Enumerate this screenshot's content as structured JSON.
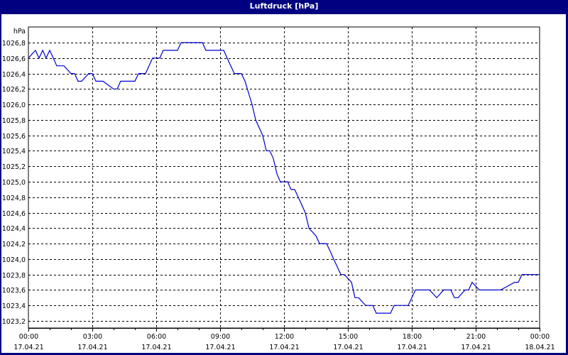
{
  "window": {
    "title": "Luftdruck [hPa]"
  },
  "colors": {
    "titlebar": "#000080",
    "line": "#0000cc",
    "grid": "#000000",
    "background": "#ffffff"
  },
  "chart_data": {
    "type": "line",
    "title": "Luftdruck [hPa]",
    "xlabel": "",
    "ylabel": "hPa",
    "ylim": [
      1023.2,
      1026.8
    ],
    "yticks": [
      "1026,8",
      "1026,6",
      "1026,4",
      "1026,2",
      "1026,0",
      "1025,8",
      "1025,6",
      "1025,4",
      "1025,2",
      "1025,0",
      "1024,8",
      "1024,6",
      "1024,4",
      "1024,2",
      "1024,0",
      "1023,8",
      "1023,6",
      "1023,4",
      "1023,2"
    ],
    "xticks": [
      {
        "time": "00:00",
        "date": "17.04.21"
      },
      {
        "time": "03:00",
        "date": "17.04.21"
      },
      {
        "time": "06:00",
        "date": "17.04.21"
      },
      {
        "time": "09:00",
        "date": "17.04.21"
      },
      {
        "time": "12:00",
        "date": "17.04.21"
      },
      {
        "time": "15:00",
        "date": "17.04.21"
      },
      {
        "time": "18:00",
        "date": "17.04.21"
      },
      {
        "time": "21:00",
        "date": "17.04.21"
      },
      {
        "time": "00:00",
        "date": "18.04.21"
      }
    ],
    "grid": true,
    "legend": "none",
    "series": [
      {
        "name": "Luftdruck",
        "x_hours": [
          0,
          0.33,
          0.5,
          0.67,
          0.83,
          1.0,
          1.17,
          1.33,
          1.67,
          2.0,
          2.17,
          2.33,
          2.5,
          2.83,
          3.0,
          3.17,
          3.5,
          4.0,
          4.17,
          4.33,
          4.5,
          5.0,
          5.17,
          5.5,
          5.83,
          6.0,
          6.17,
          6.33,
          7.0,
          7.17,
          8.17,
          8.33,
          9.17,
          9.33,
          9.5,
          9.67,
          10.0,
          10.17,
          10.5,
          10.67,
          11.0,
          11.17,
          11.33,
          11.5,
          11.67,
          11.83,
          12.0,
          12.17,
          12.33,
          12.5,
          12.67,
          13.0,
          13.17,
          13.5,
          13.67,
          14.0,
          14.17,
          14.33,
          14.5,
          14.67,
          14.83,
          15.17,
          15.33,
          15.5,
          15.83,
          16.17,
          16.33,
          16.5,
          16.67,
          17.0,
          17.17,
          17.83,
          18.17,
          18.83,
          19.17,
          19.5,
          19.67,
          19.83,
          20.0,
          20.17,
          20.5,
          20.67,
          20.83,
          21.17,
          21.33,
          21.5,
          21.83,
          22.0,
          22.17,
          22.83,
          23.0,
          23.17,
          23.33,
          23.67,
          24.0
        ],
        "values": [
          1026.6,
          1026.7,
          1026.6,
          1026.7,
          1026.6,
          1026.7,
          1026.6,
          1026.5,
          1026.5,
          1026.4,
          1026.4,
          1026.3,
          1026.3,
          1026.4,
          1026.4,
          1026.3,
          1026.3,
          1026.2,
          1026.2,
          1026.3,
          1026.3,
          1026.3,
          1026.4,
          1026.4,
          1026.6,
          1026.6,
          1026.6,
          1026.7,
          1026.7,
          1026.8,
          1026.8,
          1026.7,
          1026.7,
          1026.6,
          1026.5,
          1026.4,
          1026.4,
          1026.3,
          1026.0,
          1025.8,
          1025.6,
          1025.4,
          1025.4,
          1025.3,
          1025.1,
          1025.0,
          1025.0,
          1025.0,
          1024.9,
          1024.9,
          1024.8,
          1024.6,
          1024.4,
          1024.3,
          1024.2,
          1024.2,
          1024.1,
          1024.0,
          1023.9,
          1023.8,
          1023.8,
          1023.7,
          1023.5,
          1023.5,
          1023.4,
          1023.4,
          1023.3,
          1023.3,
          1023.3,
          1023.3,
          1023.4,
          1023.4,
          1023.6,
          1023.6,
          1023.5,
          1023.6,
          1023.6,
          1023.6,
          1023.5,
          1023.5,
          1023.6,
          1023.6,
          1023.7,
          1023.6,
          1023.6,
          1023.6,
          1023.6,
          1023.6,
          1023.6,
          1023.7,
          1023.7,
          1023.8,
          1023.8,
          1023.8,
          1023.8
        ]
      }
    ]
  }
}
